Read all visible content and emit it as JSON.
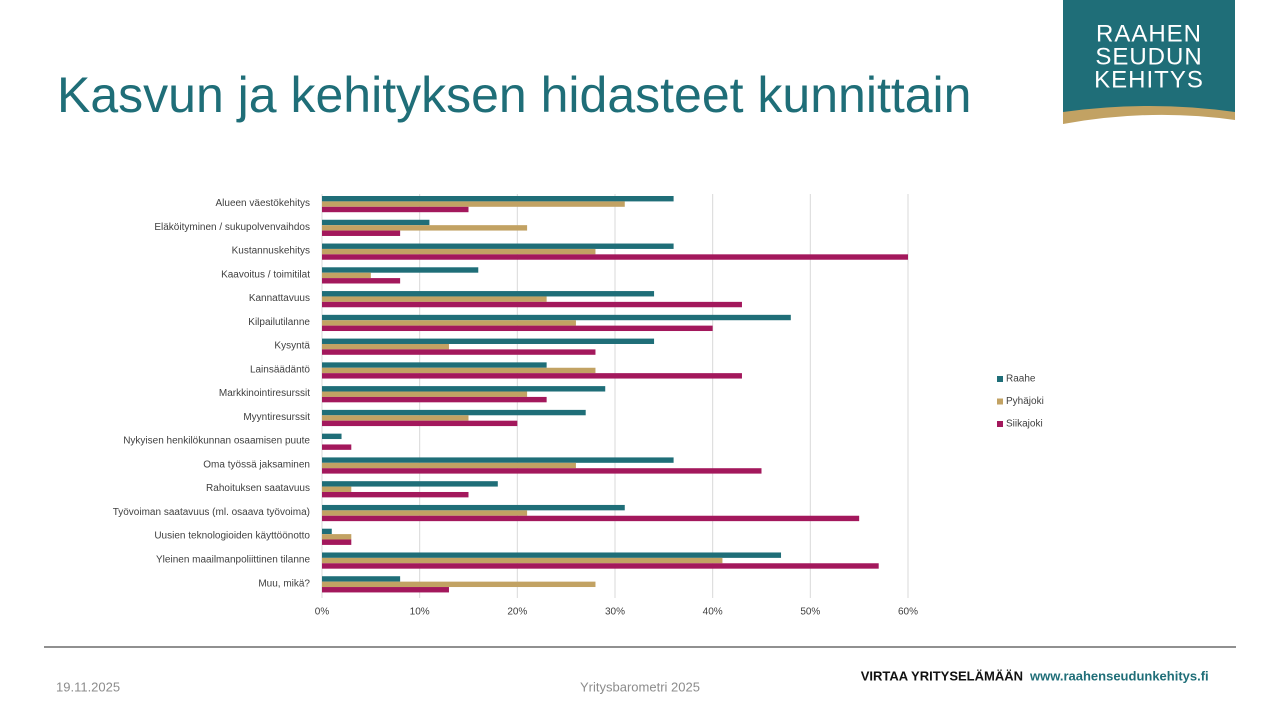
{
  "chart_data": {
    "type": "bar",
    "orientation": "horizontal",
    "title": "Kasvun ja kehityksen hidasteet kunnittain",
    "categories": [
      "Alueen väestökehitys",
      "Eläköityminen / sukupolvenvaihdos",
      "Kustannuskehitys",
      "Kaavoitus / toimitilat",
      "Kannattavuus",
      "Kilpailutilanne",
      "Kysyntä",
      "Lainsäädäntö",
      "Markkinointiresurssit",
      "Myyntiresurssit",
      "Nykyisen henkilökunnan osaamisen puute",
      "Oma työssä jaksaminen",
      "Rahoituksen saatavuus",
      "Työvoiman saatavuus (ml. osaava työvoima)",
      "Uusien teknologioiden käyttöönotto",
      "Yleinen maailmanpoliittinen tilanne",
      "Muu, mikä?"
    ],
    "series": [
      {
        "name": "Raahe",
        "color": "#1f6e78",
        "values": [
          36,
          11,
          36,
          16,
          34,
          48,
          34,
          23,
          29,
          27,
          2,
          36,
          18,
          31,
          1,
          47,
          8
        ]
      },
      {
        "name": "Pyhäjoki",
        "color": "#c2a263",
        "values": [
          31,
          21,
          28,
          5,
          23,
          26,
          13,
          28,
          21,
          15,
          0,
          26,
          3,
          21,
          3,
          41,
          28
        ]
      },
      {
        "name": "Siikajoki",
        "color": "#a3185c",
        "values": [
          15,
          8,
          60,
          8,
          43,
          40,
          28,
          43,
          23,
          20,
          3,
          45,
          15,
          55,
          3,
          57,
          13
        ]
      }
    ],
    "xlim": [
      0,
      60
    ],
    "xticks": [
      {
        "value": 0,
        "label": "0%"
      },
      {
        "value": 10,
        "label": "10%"
      },
      {
        "value": 20,
        "label": "20%"
      },
      {
        "value": 30,
        "label": "30%"
      },
      {
        "value": 40,
        "label": "40%"
      },
      {
        "value": 50,
        "label": "50%"
      },
      {
        "value": 60,
        "label": "60%"
      }
    ],
    "grid": true,
    "legend": "right"
  },
  "logo": {
    "lines": [
      "RAAHEN",
      "SEUDUN",
      "KEHITYS"
    ]
  },
  "footer": {
    "date": "19.11.2025",
    "center": "Yritysbarometri 2025",
    "slogan": "VIRTAA YRITYSELÄMÄÄN",
    "url": "www.raahenseudunkehitys.fi"
  }
}
